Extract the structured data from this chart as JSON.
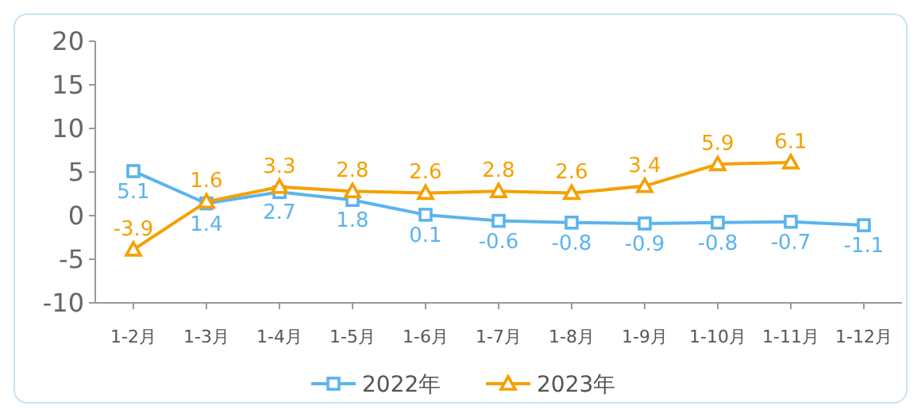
{
  "chart_data": {
    "type": "line",
    "categories": [
      "1-2月",
      "1-3月",
      "1-4月",
      "1-5月",
      "1-6月",
      "1-7月",
      "1-8月",
      "1-9月",
      "1-10月",
      "1-11月",
      "1-12月"
    ],
    "series": [
      {
        "name": "2022年",
        "color": "#5ab4ee",
        "marker": "square",
        "values": [
          5.1,
          1.4,
          2.7,
          1.8,
          0.1,
          -0.6,
          -0.8,
          -0.9,
          -0.8,
          -0.7,
          -1.1
        ]
      },
      {
        "name": "2023年",
        "color": "#f5a000",
        "marker": "triangle",
        "values": [
          -3.9,
          1.6,
          3.3,
          2.8,
          2.6,
          2.8,
          2.6,
          3.4,
          5.9,
          6.1,
          null
        ]
      }
    ],
    "ylim": [
      -10,
      20
    ],
    "yticks": [
      -10,
      -5,
      0,
      5,
      10,
      15,
      20
    ],
    "grid": false,
    "legend": "bottom",
    "data_labels": true
  }
}
